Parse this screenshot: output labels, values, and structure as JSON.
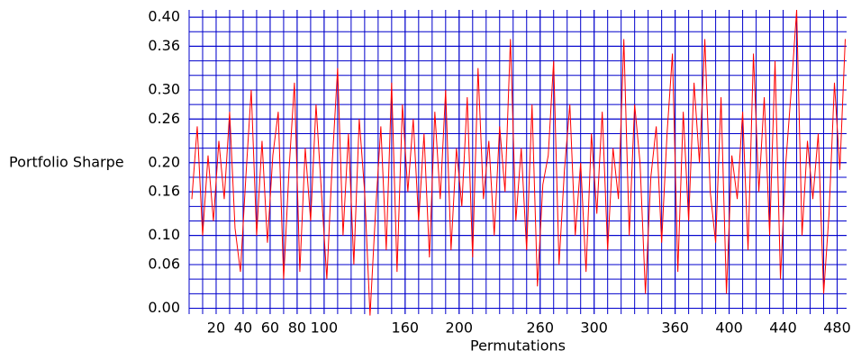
{
  "chart_data": {
    "type": "line",
    "ylabel": "Portfolio Sharpe",
    "xlabel": "Permutations",
    "x": [
      2,
      6,
      10,
      14,
      18,
      22,
      26,
      30,
      34,
      38,
      42,
      46,
      50,
      54,
      58,
      62,
      66,
      70,
      74,
      78,
      82,
      86,
      90,
      94,
      98,
      102,
      106,
      110,
      114,
      118,
      122,
      126,
      130,
      134,
      138,
      142,
      146,
      150,
      154,
      158,
      162,
      166,
      170,
      174,
      178,
      182,
      186,
      190,
      194,
      198,
      202,
      206,
      210,
      214,
      218,
      222,
      226,
      230,
      234,
      238,
      242,
      246,
      250,
      254,
      258,
      262,
      266,
      270,
      274,
      278,
      282,
      286,
      290,
      294,
      298,
      302,
      306,
      310,
      314,
      318,
      322,
      326,
      330,
      334,
      338,
      342,
      346,
      350,
      354,
      358,
      362,
      366,
      370,
      374,
      378,
      382,
      386,
      390,
      394,
      398,
      402,
      406,
      410,
      414,
      418,
      422,
      426,
      430,
      434,
      438,
      442,
      446,
      450,
      454,
      458,
      462,
      466,
      470,
      474,
      478,
      482,
      486
    ],
    "series": [
      {
        "name": "Portfolio Sharpe",
        "color": "#ff0000",
        "values": [
          0.15,
          0.25,
          0.1,
          0.21,
          0.12,
          0.23,
          0.15,
          0.27,
          0.11,
          0.05,
          0.18,
          0.3,
          0.1,
          0.23,
          0.09,
          0.21,
          0.27,
          0.04,
          0.19,
          0.31,
          0.05,
          0.22,
          0.12,
          0.28,
          0.16,
          0.04,
          0.2,
          0.33,
          0.1,
          0.24,
          0.06,
          0.26,
          0.16,
          -0.01,
          0.13,
          0.25,
          0.08,
          0.31,
          0.05,
          0.28,
          0.16,
          0.26,
          0.12,
          0.24,
          0.07,
          0.27,
          0.15,
          0.3,
          0.08,
          0.22,
          0.14,
          0.29,
          0.07,
          0.33,
          0.15,
          0.23,
          0.1,
          0.25,
          0.16,
          0.37,
          0.12,
          0.22,
          0.08,
          0.28,
          0.03,
          0.17,
          0.21,
          0.34,
          0.06,
          0.19,
          0.28,
          0.1,
          0.2,
          0.05,
          0.24,
          0.13,
          0.27,
          0.08,
          0.22,
          0.15,
          0.37,
          0.1,
          0.28,
          0.2,
          0.02,
          0.18,
          0.25,
          0.09,
          0.24,
          0.35,
          0.05,
          0.27,
          0.12,
          0.31,
          0.2,
          0.37,
          0.16,
          0.09,
          0.29,
          0.02,
          0.21,
          0.15,
          0.27,
          0.08,
          0.35,
          0.16,
          0.29,
          0.1,
          0.34,
          0.04,
          0.2,
          0.3,
          0.41,
          0.1,
          0.23,
          0.15,
          0.24,
          0.02,
          0.13,
          0.31,
          0.19,
          0.37
        ]
      }
    ],
    "xlim": [
      0,
      487
    ],
    "ylim": [
      -0.008,
      0.41
    ],
    "xticks": [
      20,
      40,
      60,
      80,
      100,
      160,
      200,
      260,
      300,
      360,
      400,
      440,
      480
    ],
    "yticks": [
      {
        "value": 0,
        "label": "0.00"
      },
      {
        "value": 0.06,
        "label": "0.06"
      },
      {
        "value": 0.1,
        "label": "0.10"
      },
      {
        "value": 0.16,
        "label": "0.16"
      },
      {
        "value": 0.2,
        "label": "0.20"
      },
      {
        "value": 0.26,
        "label": "0.26"
      },
      {
        "value": 0.3,
        "label": "0.30"
      },
      {
        "value": 0.36,
        "label": "0.36"
      },
      {
        "value": 0.4,
        "label": "0.40"
      }
    ],
    "grid": true,
    "grid_color": "#0000cc",
    "xgrid_step": 10,
    "ygrid_step": 0.02
  }
}
